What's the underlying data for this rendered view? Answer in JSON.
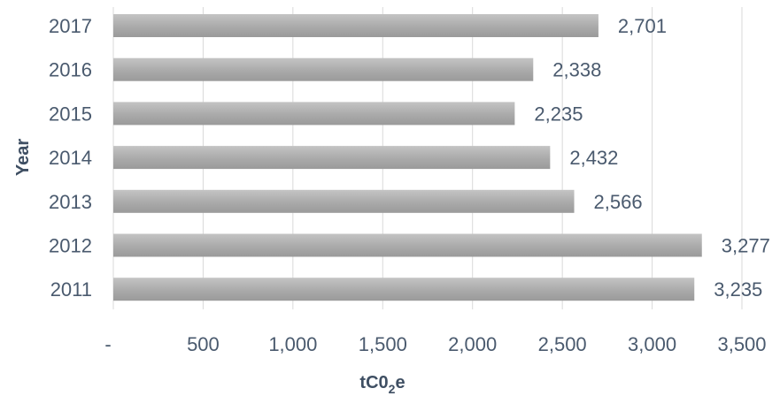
{
  "chart_data": {
    "type": "bar",
    "orientation": "horizontal",
    "categories": [
      "2017",
      "2016",
      "2015",
      "2014",
      "2013",
      "2012",
      "2011"
    ],
    "values": [
      2701,
      2338,
      2235,
      2432,
      2566,
      3277,
      3235
    ],
    "data_labels": [
      "2,701",
      "2,338",
      "2,235",
      "2,432",
      "2,566",
      "3,277",
      "3,235"
    ],
    "xlabel": "tC02e",
    "xlabel_main": "tC0",
    "xlabel_sub": "2",
    "xlabel_tail": "e",
    "ylabel": "Year",
    "xlim": [
      0,
      3500
    ],
    "x_ticks": [
      0,
      500,
      1000,
      1500,
      2000,
      2500,
      3000,
      3500
    ],
    "x_tick_labels": [
      "-",
      "500",
      "1,000",
      "1,500",
      "2,000",
      "2,500",
      "3,000",
      "3,500"
    ],
    "grid": true,
    "legend": "none",
    "bar_color": "#aaaaaa",
    "gridline_color": "#d9d9d9",
    "text_color": "#4a5a6e"
  }
}
